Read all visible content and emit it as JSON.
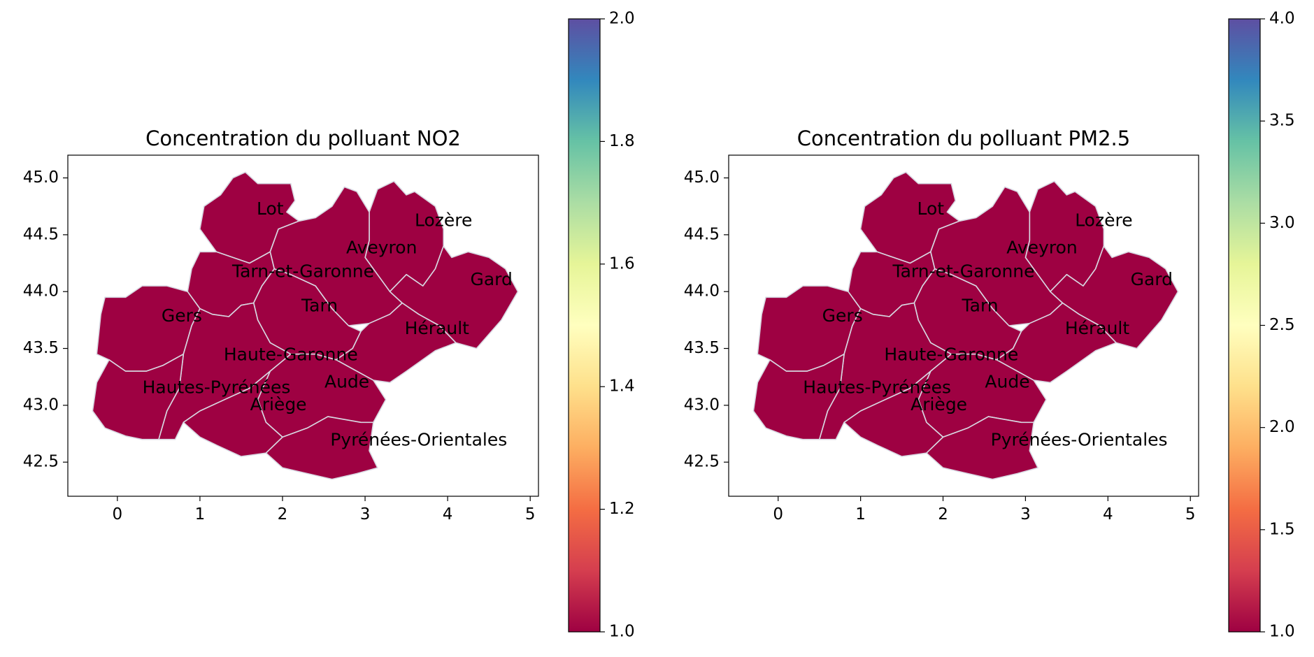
{
  "chart_data": [
    {
      "type": "choropleth",
      "title": "Concentration du polluant NO2",
      "xlim": [
        -0.6,
        5.1
      ],
      "ylim": [
        42.2,
        45.2
      ],
      "xticks": [
        "0",
        "1",
        "2",
        "3",
        "4",
        "5"
      ],
      "yticks": [
        "42.5",
        "43.0",
        "43.5",
        "44.0",
        "44.5",
        "45.0"
      ],
      "colormap": "Spectral",
      "colorbar": {
        "range": [
          1.0,
          2.0
        ],
        "ticks": [
          "1.0",
          "1.2",
          "1.4",
          "1.6",
          "1.8",
          "2.0"
        ]
      },
      "regions": [
        {
          "name": "Lot",
          "value": 1.0
        },
        {
          "name": "Lozère",
          "value": 1.0
        },
        {
          "name": "Aveyron",
          "value": 1.0
        },
        {
          "name": "Tarn-et-Garonne",
          "value": 1.0
        },
        {
          "name": "Gard",
          "value": 1.0
        },
        {
          "name": "Tarn",
          "value": 1.0
        },
        {
          "name": "Gers",
          "value": 1.0
        },
        {
          "name": "Hérault",
          "value": 1.0
        },
        {
          "name": "Haute-Garonne",
          "value": 1.0
        },
        {
          "name": "Aude",
          "value": 1.0
        },
        {
          "name": "Hautes-Pyrénées",
          "value": 1.0
        },
        {
          "name": "Ariège",
          "value": 1.0
        },
        {
          "name": "Pyrénées-Orientales",
          "value": 1.0
        }
      ]
    },
    {
      "type": "choropleth",
      "title": "Concentration du polluant PM2.5",
      "xlim": [
        -0.6,
        5.1
      ],
      "ylim": [
        42.2,
        45.2
      ],
      "xticks": [
        "0",
        "1",
        "2",
        "3",
        "4",
        "5"
      ],
      "yticks": [
        "42.5",
        "43.0",
        "43.5",
        "44.0",
        "44.5",
        "45.0"
      ],
      "colormap": "Spectral",
      "colorbar": {
        "range": [
          1.0,
          4.0
        ],
        "ticks": [
          "1.0",
          "1.5",
          "2.0",
          "2.5",
          "3.0",
          "3.5",
          "4.0"
        ]
      },
      "regions": [
        {
          "name": "Lot",
          "value": 1.0
        },
        {
          "name": "Lozère",
          "value": 1.0
        },
        {
          "name": "Aveyron",
          "value": 1.0
        },
        {
          "name": "Tarn-et-Garonne",
          "value": 1.0
        },
        {
          "name": "Gard",
          "value": 1.0
        },
        {
          "name": "Tarn",
          "value": 1.0
        },
        {
          "name": "Gers",
          "value": 1.0
        },
        {
          "name": "Hérault",
          "value": 1.0
        },
        {
          "name": "Haute-Garonne",
          "value": 1.0
        },
        {
          "name": "Aude",
          "value": 1.0
        },
        {
          "name": "Hautes-Pyrénées",
          "value": 1.0
        },
        {
          "name": "Ariège",
          "value": 1.0
        },
        {
          "name": "Pyrénées-Orientales",
          "value": 1.0
        }
      ]
    }
  ],
  "colors": {
    "region_fill": "#9e0142",
    "region_edge": "#d8d8e2",
    "spectral_stops": [
      "#9e0142",
      "#d53e4f",
      "#f46d43",
      "#fdae61",
      "#fee08b",
      "#ffffbf",
      "#e6f598",
      "#abdda4",
      "#66c2a5",
      "#3288bd",
      "#5e4fa2"
    ]
  }
}
